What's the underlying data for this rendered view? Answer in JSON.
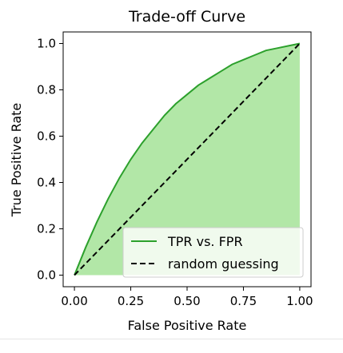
{
  "chart_data": {
    "type": "line",
    "title": "Trade-off Curve",
    "xlabel": "False Positive Rate",
    "ylabel": "True Positive Rate",
    "xlim": [
      0.0,
      1.0
    ],
    "ylim": [
      0.0,
      1.0
    ],
    "xticks": [
      "0.00",
      "0.25",
      "0.50",
      "0.75",
      "1.00"
    ],
    "yticks": [
      "0.0",
      "0.2",
      "0.4",
      "0.6",
      "0.8",
      "1.0"
    ],
    "grid": false,
    "legend_position": "lower right",
    "series": [
      {
        "name": "TPR vs. FPR",
        "style": "solid",
        "color": "#2ca02c",
        "fill": "#98df8a",
        "x": [
          0.0,
          0.05,
          0.1,
          0.15,
          0.2,
          0.25,
          0.3,
          0.35,
          0.4,
          0.45,
          0.5,
          0.55,
          0.6,
          0.65,
          0.7,
          0.75,
          0.8,
          0.85,
          0.9,
          0.95,
          1.0
        ],
        "y": [
          0.0,
          0.12,
          0.23,
          0.33,
          0.42,
          0.5,
          0.57,
          0.63,
          0.69,
          0.74,
          0.78,
          0.82,
          0.85,
          0.88,
          0.91,
          0.93,
          0.95,
          0.97,
          0.98,
          0.99,
          1.0
        ]
      },
      {
        "name": "random guessing",
        "style": "dashed",
        "color": "#000000",
        "x": [
          0.0,
          1.0
        ],
        "y": [
          0.0,
          1.0
        ]
      }
    ]
  }
}
